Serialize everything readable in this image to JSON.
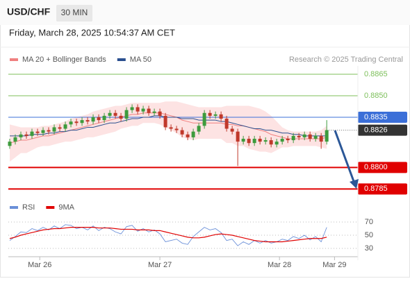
{
  "header": {
    "symbol": "USD/CHF",
    "timeframe": "30 MIN",
    "date": "Friday, March 28, 2025 10:54:37 AM CET"
  },
  "chart_data": [
    {
      "type": "candlestick",
      "credit": "Research © 2025 Trading Central",
      "xlim": [
        -0.25,
        62.6
      ],
      "ylim": [
        0.8778,
        0.8872
      ],
      "up_color": "#3d9b3d",
      "down_color": "#c0392b",
      "open": [
        0.8815,
        0.8818,
        0.8821,
        0.8823,
        0.8822,
        0.8825,
        0.8824,
        0.8826,
        0.8825,
        0.8828,
        0.8827,
        0.883,
        0.8832,
        0.8831,
        0.8833,
        0.8832,
        0.8835,
        0.8833,
        0.8836,
        0.8838,
        0.8836,
        0.8834,
        0.884,
        0.8842,
        0.8839,
        0.8841,
        0.8838,
        0.8839,
        0.8836,
        0.8828,
        0.8827,
        0.8826,
        0.8823,
        0.8821,
        0.8825,
        0.8829,
        0.8838,
        0.8836,
        0.8837,
        0.8834,
        0.8827,
        0.8825,
        0.8818,
        0.882,
        0.8817,
        0.882,
        0.8818,
        0.8819,
        0.8816,
        0.8818,
        0.882,
        0.8819,
        0.8822,
        0.8821,
        0.8823,
        0.882,
        0.8822,
        0.8818
      ],
      "high": [
        0.882,
        0.8823,
        0.8825,
        0.8825,
        0.8827,
        0.8827,
        0.8828,
        0.8828,
        0.883,
        0.883,
        0.8832,
        0.8834,
        0.8834,
        0.8835,
        0.8835,
        0.8837,
        0.8837,
        0.8838,
        0.884,
        0.884,
        0.8838,
        0.8842,
        0.8844,
        0.8844,
        0.8843,
        0.8843,
        0.8841,
        0.8841,
        0.8838,
        0.883,
        0.8829,
        0.8828,
        0.8825,
        0.8827,
        0.8831,
        0.884,
        0.884,
        0.8839,
        0.8839,
        0.8836,
        0.8829,
        0.8827,
        0.8822,
        0.8822,
        0.8822,
        0.8822,
        0.8821,
        0.8821,
        0.882,
        0.8822,
        0.8822,
        0.8824,
        0.8824,
        0.8825,
        0.8825,
        0.8824,
        0.8824,
        0.8833
      ],
      "low": [
        0.8813,
        0.8816,
        0.8819,
        0.882,
        0.882,
        0.8822,
        0.8822,
        0.8823,
        0.8823,
        0.8825,
        0.8825,
        0.8828,
        0.8829,
        0.8829,
        0.883,
        0.883,
        0.8831,
        0.8831,
        0.8834,
        0.8834,
        0.8832,
        0.8832,
        0.8838,
        0.8837,
        0.8837,
        0.8836,
        0.8836,
        0.8834,
        0.8826,
        0.8825,
        0.8824,
        0.8821,
        0.8819,
        0.8819,
        0.8823,
        0.8827,
        0.8834,
        0.8834,
        0.8832,
        0.8825,
        0.8823,
        0.8801,
        0.8816,
        0.8815,
        0.8815,
        0.8816,
        0.8816,
        0.8814,
        0.8814,
        0.8816,
        0.8817,
        0.8817,
        0.8819,
        0.8819,
        0.8818,
        0.8818,
        0.8813,
        0.8816
      ],
      "close": [
        0.8818,
        0.8821,
        0.8823,
        0.8822,
        0.8825,
        0.8824,
        0.8826,
        0.8825,
        0.8828,
        0.8827,
        0.883,
        0.8832,
        0.8831,
        0.8833,
        0.8832,
        0.8835,
        0.8833,
        0.8836,
        0.8838,
        0.8836,
        0.8834,
        0.884,
        0.8842,
        0.8839,
        0.8841,
        0.8838,
        0.8839,
        0.8836,
        0.8828,
        0.8827,
        0.8826,
        0.8823,
        0.8821,
        0.8825,
        0.8829,
        0.8838,
        0.8836,
        0.8837,
        0.8834,
        0.8827,
        0.8825,
        0.8818,
        0.882,
        0.8817,
        0.882,
        0.8818,
        0.8819,
        0.8816,
        0.8818,
        0.882,
        0.8819,
        0.8822,
        0.8821,
        0.8823,
        0.882,
        0.8822,
        0.8818,
        0.8826
      ],
      "series": [
        {
          "name": "MA 20 + Bollinger Bands",
          "color": "#f08080",
          "band_color": "#fde3e3",
          "values": [
            0.8817,
            0.8818,
            0.8819,
            0.8819,
            0.882,
            0.8821,
            0.8822,
            0.8822,
            0.8823,
            0.8824,
            0.8825,
            0.8826,
            0.8827,
            0.8828,
            0.8829,
            0.883,
            0.8831,
            0.8832,
            0.8833,
            0.8834,
            0.8835,
            0.8836,
            0.8837,
            0.8837,
            0.8838,
            0.8838,
            0.8838,
            0.8838,
            0.8837,
            0.8836,
            0.8835,
            0.8833,
            0.8832,
            0.8831,
            0.8831,
            0.8831,
            0.8831,
            0.8831,
            0.8831,
            0.883,
            0.883,
            0.8829,
            0.8829,
            0.8828,
            0.8827,
            0.8826,
            0.8825,
            0.8823,
            0.8822,
            0.8821,
            0.882,
            0.882,
            0.882,
            0.882,
            0.882,
            0.882,
            0.882,
            0.8821
          ],
          "upper": [
            0.883,
            0.8829,
            0.8828,
            0.8828,
            0.8828,
            0.8828,
            0.8829,
            0.8829,
            0.883,
            0.8831,
            0.8832,
            0.8834,
            0.8835,
            0.8836,
            0.8837,
            0.8839,
            0.884,
            0.8841,
            0.8842,
            0.8843,
            0.8843,
            0.8844,
            0.8845,
            0.8845,
            0.8845,
            0.8845,
            0.8845,
            0.8845,
            0.8846,
            0.8846,
            0.8846,
            0.8845,
            0.8844,
            0.8843,
            0.8842,
            0.8842,
            0.8842,
            0.8842,
            0.8842,
            0.8843,
            0.8843,
            0.8843,
            0.8843,
            0.8843,
            0.8842,
            0.8841,
            0.8839,
            0.8836,
            0.8832,
            0.8828,
            0.8826,
            0.8825,
            0.8825,
            0.8825,
            0.8825,
            0.8825,
            0.8826,
            0.8829
          ],
          "lower": [
            0.8804,
            0.8807,
            0.881,
            0.881,
            0.8812,
            0.8814,
            0.8815,
            0.8815,
            0.8816,
            0.8817,
            0.8818,
            0.8818,
            0.8819,
            0.882,
            0.8821,
            0.8821,
            0.8822,
            0.8823,
            0.8824,
            0.8825,
            0.8827,
            0.8828,
            0.8829,
            0.8829,
            0.8831,
            0.8831,
            0.8831,
            0.883,
            0.8828,
            0.8826,
            0.8824,
            0.8821,
            0.882,
            0.8819,
            0.882,
            0.882,
            0.882,
            0.882,
            0.882,
            0.8817,
            0.8817,
            0.8815,
            0.8815,
            0.8813,
            0.8812,
            0.8811,
            0.8811,
            0.881,
            0.8812,
            0.8814,
            0.8814,
            0.8815,
            0.8815,
            0.8815,
            0.8815,
            0.8815,
            0.8814,
            0.8813
          ]
        },
        {
          "name": "MA 50",
          "color": "#2a4f8f",
          "values": [
            0.8822,
            0.8822,
            0.8822,
            0.8822,
            0.8823,
            0.8823,
            0.8823,
            0.8824,
            0.8824,
            0.8825,
            0.8825,
            0.8826,
            0.8826,
            0.8827,
            0.8828,
            0.8828,
            0.8829,
            0.883,
            0.8831,
            0.8831,
            0.8832,
            0.8833,
            0.8834,
            0.8834,
            0.8835,
            0.8835,
            0.8836,
            0.8836,
            0.8835,
            0.8835,
            0.8835,
            0.8834,
            0.8834,
            0.8834,
            0.8833,
            0.8833,
            0.8833,
            0.8833,
            0.8832,
            0.8832,
            0.8831,
            0.883,
            0.8829,
            0.8828,
            0.8827,
            0.8827,
            0.8826,
            0.8826,
            0.8825,
            0.8824,
            0.8824,
            0.8823,
            0.8823,
            0.8822,
            0.8822,
            0.8822,
            0.8822,
            0.8822
          ]
        }
      ],
      "levels": [
        {
          "value": 0.8865,
          "label": "0.8865",
          "color": "#7cbf5a",
          "style": "text"
        },
        {
          "value": 0.885,
          "label": "0.8850",
          "color": "#7cbf5a",
          "style": "text"
        },
        {
          "value": 0.8835,
          "label": "0.8835",
          "color": "#3b6fd8",
          "style": "box"
        },
        {
          "value": 0.8826,
          "label": "0.8826",
          "color": "#333333",
          "style": "last"
        },
        {
          "value": 0.88,
          "label": "0.8800",
          "color": "#e00000",
          "style": "box"
        },
        {
          "value": 0.8785,
          "label": "0.8785",
          "color": "#e00000",
          "style": "box"
        }
      ]
    },
    {
      "type": "line",
      "xlim": [
        -0.25,
        62.6
      ],
      "ylim": [
        20,
        80
      ],
      "yticks": [
        30,
        50,
        70
      ],
      "xticks": [
        {
          "value": 5.4,
          "label": "Mar 26"
        },
        {
          "value": 27,
          "label": "Mar 27"
        },
        {
          "value": 48.5,
          "label": "Mar 28"
        },
        {
          "value": 58.4,
          "label": "Mar 29"
        }
      ],
      "series": [
        {
          "name": "RSI",
          "color": "#6a8fd8",
          "values": [
            42,
            48,
            55,
            54,
            60,
            57,
            62,
            58,
            64,
            60,
            66,
            65,
            60,
            62,
            58,
            64,
            57,
            62,
            60,
            55,
            52,
            63,
            65,
            56,
            60,
            55,
            58,
            52,
            40,
            42,
            44,
            38,
            36,
            48,
            55,
            62,
            58,
            60,
            54,
            42,
            44,
            34,
            40,
            36,
            42,
            38,
            42,
            38,
            40,
            44,
            42,
            48,
            45,
            50,
            43,
            48,
            40,
            62
          ]
        },
        {
          "name": "9MA",
          "color": "#e00000",
          "values": [
            45,
            47,
            50,
            52,
            54,
            56,
            58,
            59,
            60,
            60,
            61,
            62,
            62,
            62,
            62,
            62,
            61,
            61,
            61,
            60,
            59,
            59,
            59,
            58,
            58,
            58,
            57,
            57,
            55,
            53,
            51,
            49,
            47,
            46,
            46,
            47,
            49,
            51,
            52,
            51,
            50,
            48,
            46,
            44,
            42,
            41,
            40,
            40,
            40,
            40,
            41,
            42,
            43,
            44,
            45,
            45,
            45,
            47
          ]
        }
      ]
    }
  ]
}
